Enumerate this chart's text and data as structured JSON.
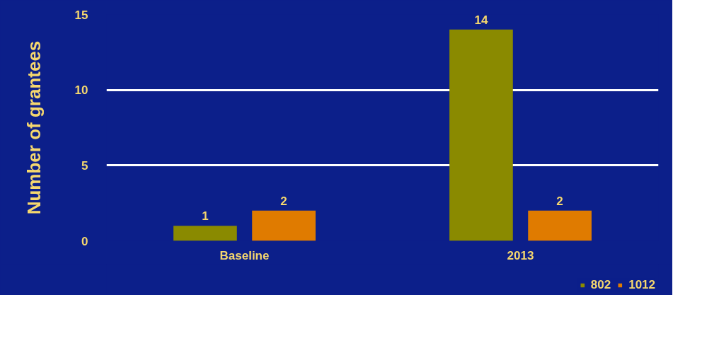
{
  "chart_data": {
    "type": "bar",
    "ylabel": "Number of grantees",
    "categories": [
      "Baseline",
      "2013"
    ],
    "series": [
      {
        "name": "802",
        "color": "#8a8a00",
        "values": [
          1,
          14
        ]
      },
      {
        "name": "1012",
        "color": "#e07b00",
        "values": [
          2,
          2
        ]
      }
    ],
    "ylim": [
      0,
      15
    ],
    "yticks": [
      0,
      5,
      10,
      15
    ],
    "grid": "y",
    "legend": "bottom right",
    "data_labels": true
  }
}
